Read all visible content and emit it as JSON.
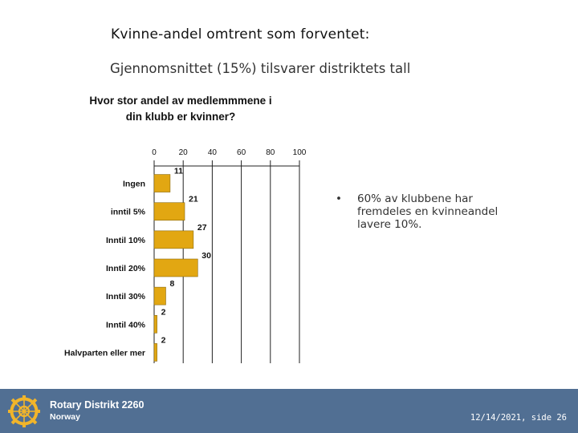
{
  "slide": {
    "title": "Kvinne-andel omtrent som forventet:",
    "subtitle": "Gjennomsnittet (15%) tilsvarer distriktets tall",
    "bullet_marker": "•",
    "bullet_text": "60%  av klubbene har fremdeles en kvinneandel lavere 10%."
  },
  "chart_data": {
    "type": "bar",
    "orientation": "horizontal",
    "title": "Hvor stor andel av medlemmmene i din klubb er kvinner?",
    "categories": [
      "Ingen",
      "inntil 5%",
      "Inntil 10%",
      "Inntil 20%",
      "Inntil 30%",
      "Inntil 40%",
      "Halvparten eller mer"
    ],
    "values": [
      11,
      21,
      27,
      30,
      8,
      2,
      2
    ],
    "value_labels": [
      "11",
      "21",
      "27",
      "30",
      "8",
      "2",
      "2"
    ],
    "xlim": [
      0,
      100
    ],
    "xticks": [
      "0",
      "20",
      "40",
      "60",
      "80",
      "100"
    ],
    "bar_color": "#e2a712",
    "axis_position": "top",
    "grid": "vertical",
    "xlabel": "",
    "ylabel": ""
  },
  "footer": {
    "org_name": "Rotary Distrikt 2260",
    "country": "Norway",
    "date_page": "12/14/2021, side 26",
    "background_color": "#516f93",
    "logo_icon": "rotary-wheel-icon",
    "logo_color": "#f2b52a"
  }
}
